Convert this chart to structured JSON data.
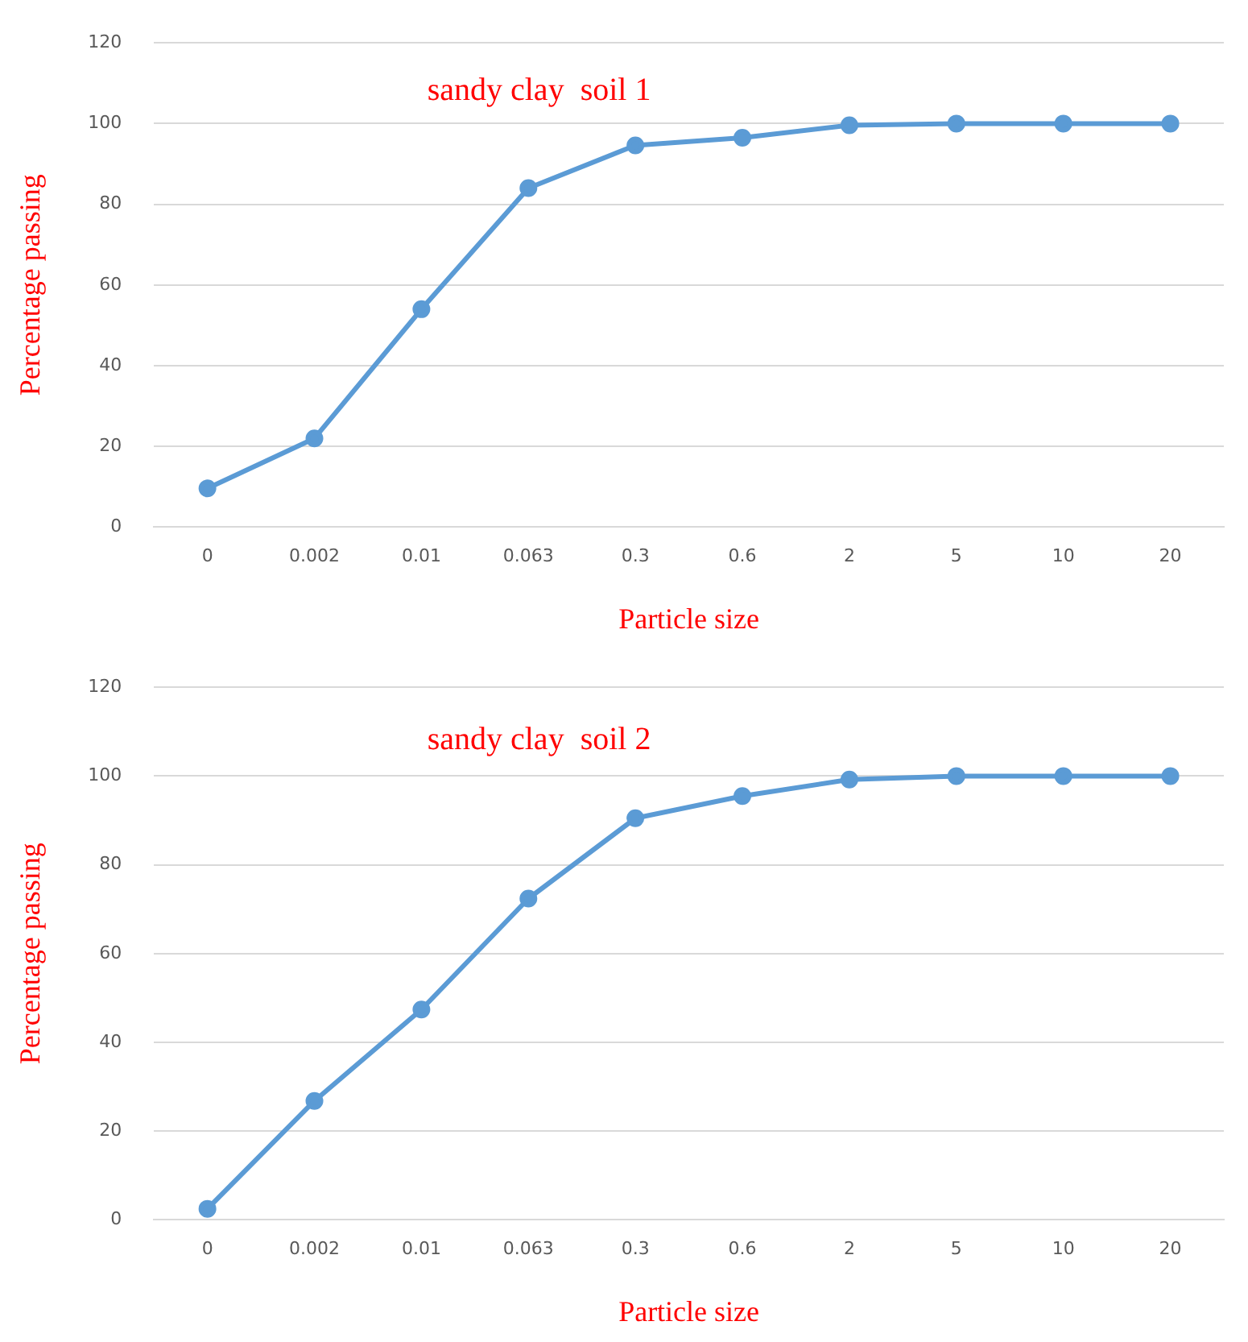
{
  "chart_data": [
    {
      "type": "line",
      "title": "sandy clay  soil 1",
      "xlabel": "Particle size",
      "ylabel": "Percentage passing",
      "categories": [
        "0",
        "0.002",
        "0.01",
        "0.063",
        "0.3",
        "0.6",
        "2",
        "5",
        "10",
        "20"
      ],
      "series": [
        {
          "color": "#5b9bd5",
          "values": [
            9.6,
            22,
            54,
            84,
            94.6,
            96.5,
            99.6,
            100,
            100,
            100
          ]
        }
      ],
      "ylim": [
        0,
        120
      ],
      "yticks": [
        0,
        20,
        40,
        60,
        80,
        100,
        120
      ],
      "grid": "y",
      "marker": "circle",
      "line_style": "solid"
    },
    {
      "type": "line",
      "title": "sandy clay  soil 2",
      "xlabel": "Particle size",
      "ylabel": "Percentage passing",
      "categories": [
        "0",
        "0.002",
        "0.01",
        "0.063",
        "0.3",
        "0.6",
        "2",
        "5",
        "10",
        "20"
      ],
      "series": [
        {
          "color": "#5b9bd5",
          "values": [
            2.5,
            26.8,
            47.4,
            72.4,
            90.5,
            95.5,
            99.2,
            100,
            100,
            100
          ]
        }
      ],
      "ylim": [
        0,
        120
      ],
      "yticks": [
        0,
        20,
        40,
        60,
        80,
        100,
        120
      ],
      "grid": "y",
      "marker": "circle",
      "line_style": "solid"
    }
  ]
}
